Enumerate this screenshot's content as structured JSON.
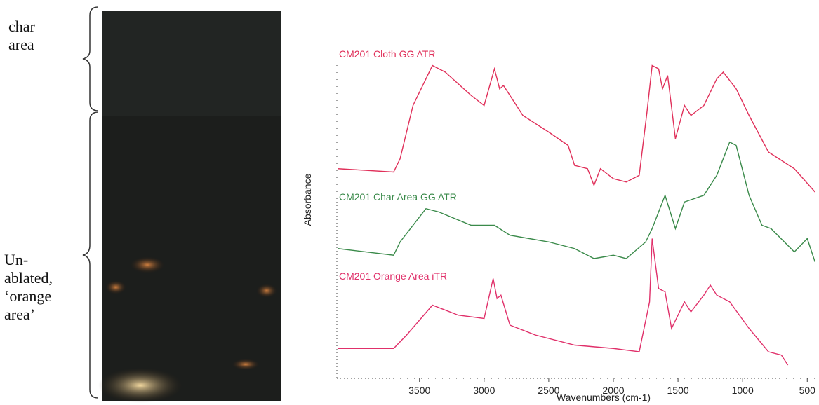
{
  "photo": {
    "labels": [
      [
        "char",
        "area"
      ],
      [
        "Un-",
        "ablated,",
        "‘orange",
        "area’"
      ]
    ]
  },
  "chart_data": {
    "type": "line",
    "x_label": "Wavenumbers (cm-1)",
    "y_label": "Absorbance",
    "xlim": [
      4150,
      420
    ],
    "xticks": [
      3500,
      3000,
      2500,
      2000,
      1500,
      1000,
      500
    ],
    "ylim": [
      0,
      100
    ],
    "series": [
      {
        "name": "CM201 Cloth GG ATR",
        "color": "#e0305a",
        "x": [
          4130,
          3700,
          3650,
          3550,
          3400,
          3300,
          3100,
          3000,
          2920,
          2880,
          2850,
          2700,
          2500,
          2350,
          2300,
          2200,
          2150,
          2100,
          2000,
          1900,
          1800,
          1740,
          1700,
          1650,
          1620,
          1580,
          1520,
          1450,
          1400,
          1300,
          1200,
          1150,
          1050,
          950,
          800,
          600,
          440
        ],
        "values": [
          63,
          62,
          66,
          82,
          94,
          92,
          85,
          82,
          93,
          87,
          88,
          79,
          74,
          70,
          64,
          63,
          58,
          63,
          60,
          59,
          61,
          80,
          94,
          93,
          87,
          91,
          72,
          82,
          79,
          82,
          90,
          92,
          87,
          79,
          68,
          63,
          56
        ]
      },
      {
        "name": "CM201 Char Area GG ATR",
        "color": "#3a8a4a",
        "x": [
          4130,
          3700,
          3650,
          3450,
          3350,
          3100,
          2920,
          2800,
          2500,
          2300,
          2150,
          2000,
          1900,
          1750,
          1700,
          1600,
          1520,
          1450,
          1300,
          1200,
          1100,
          1050,
          950,
          850,
          780,
          600,
          500,
          440
        ],
        "values": [
          39,
          37,
          41,
          51,
          50,
          46,
          46,
          43,
          41,
          39,
          36,
          37,
          36,
          41,
          45,
          55,
          45,
          53,
          55,
          61,
          71,
          70,
          55,
          46,
          45,
          38,
          42,
          35
        ]
      },
      {
        "name": "CM201 Orange Area iTR",
        "color": "#e0306a",
        "x": [
          4130,
          3700,
          3600,
          3400,
          3200,
          3000,
          2930,
          2900,
          2870,
          2800,
          2600,
          2300,
          2000,
          1800,
          1720,
          1700,
          1650,
          1600,
          1550,
          1450,
          1400,
          1300,
          1250,
          1200,
          1100,
          950,
          800,
          700,
          650
        ],
        "values": [
          9,
          9,
          13,
          22,
          19,
          18,
          30,
          24,
          25,
          16,
          13,
          10,
          9,
          8,
          23,
          42,
          27,
          26,
          15,
          23,
          20,
          25,
          28,
          25,
          23,
          15,
          8,
          7,
          4
        ]
      }
    ]
  }
}
